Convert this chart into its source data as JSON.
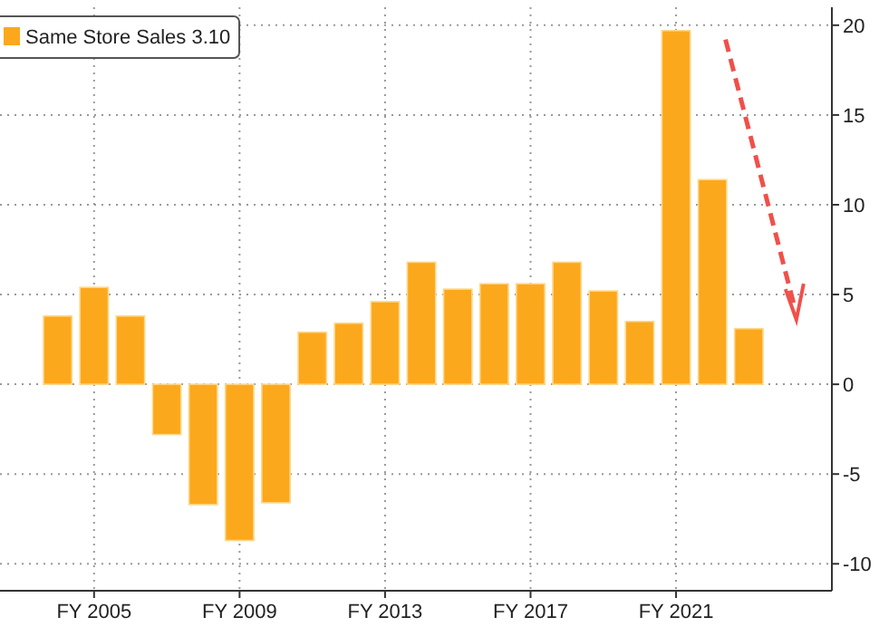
{
  "chart_data": {
    "type": "bar",
    "categories": [
      null,
      "FY 2005",
      null,
      null,
      null,
      "FY 2009",
      null,
      null,
      null,
      "FY 2013",
      null,
      null,
      null,
      "FY 2017",
      null,
      null,
      null,
      "FY 2021",
      null,
      null
    ],
    "series": [
      {
        "name": "Same Store Sales 3.10",
        "color": "#fca81c",
        "values": [
          3.8,
          5.4,
          3.8,
          -2.8,
          -6.7,
          -8.7,
          -6.6,
          2.9,
          3.4,
          4.6,
          6.8,
          5.3,
          5.6,
          5.6,
          6.8,
          5.2,
          3.5,
          19.7,
          11.4,
          3.1
        ]
      }
    ],
    "ylim": [
      -11.5,
      21
    ],
    "yticks": [
      -10,
      -5,
      0,
      5,
      10,
      15,
      20
    ],
    "grid": true,
    "legend": "top left"
  }
}
